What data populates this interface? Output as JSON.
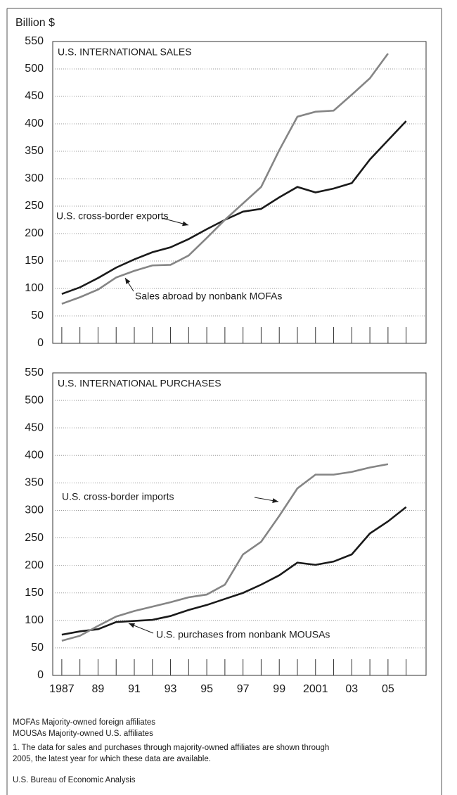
{
  "chart_data": [
    {
      "type": "line",
      "title": "U.S. INTERNATIONAL SALES",
      "ylabel": "Billion $",
      "x": [
        1987,
        1988,
        1989,
        1990,
        1991,
        1992,
        1993,
        1994,
        1995,
        1996,
        1997,
        1998,
        1999,
        2000,
        2001,
        2002,
        2003,
        2004,
        2005,
        2006
      ],
      "series": [
        {
          "name": "U.S. cross-border exports",
          "color": "#1a1a1a",
          "values": [
            90,
            102,
            119,
            138,
            153,
            166,
            175,
            190,
            208,
            225,
            240,
            245,
            266,
            285,
            275,
            282,
            292,
            335,
            370,
            405
          ]
        },
        {
          "name": "Sales abroad by nonbank MOFAs",
          "color": "#858585",
          "values": [
            72,
            84,
            98,
            120,
            132,
            142,
            143,
            160,
            192,
            225,
            255,
            285,
            352,
            413,
            422,
            424,
            453,
            483,
            528,
            null
          ]
        }
      ],
      "xlim": [
        1986.5,
        2007.1
      ],
      "ylim": [
        0,
        550
      ],
      "yticks": [
        0,
        50,
        100,
        150,
        200,
        250,
        300,
        350,
        400,
        450,
        500,
        550
      ],
      "grid": true
    },
    {
      "type": "line",
      "title": "U.S. INTERNATIONAL PURCHASES",
      "x": [
        1987,
        1988,
        1989,
        1990,
        1991,
        1992,
        1993,
        1994,
        1995,
        1996,
        1997,
        1998,
        1999,
        2000,
        2001,
        2002,
        2003,
        2004,
        2005,
        2006
      ],
      "series": [
        {
          "name": "U.S. cross-border imports",
          "color": "#1a1a1a",
          "values": [
            74,
            80,
            84,
            97,
            99,
            101,
            108,
            119,
            128,
            139,
            150,
            165,
            182,
            205,
            201,
            207,
            220,
            258,
            280,
            306
          ]
        },
        {
          "name": "U.S. purchases from nonbank MOUSAs",
          "color": "#858585",
          "values": [
            63,
            72,
            90,
            107,
            117,
            125,
            133,
            142,
            147,
            165,
            220,
            243,
            290,
            340,
            365,
            365,
            370,
            378,
            384,
            null
          ]
        }
      ],
      "xlim": [
        1986.5,
        2007.1
      ],
      "ylim": [
        0,
        550
      ],
      "yticks": [
        0,
        50,
        100,
        150,
        200,
        250,
        300,
        350,
        400,
        450,
        500,
        550
      ],
      "xticks": [
        1987,
        {
          "value": 1989,
          "label": "89"
        },
        {
          "value": 1991,
          "label": "91"
        },
        {
          "value": 1993,
          "label": "93"
        },
        {
          "value": 1995,
          "label": "95"
        },
        {
          "value": 1997,
          "label": "97"
        },
        {
          "value": 1999,
          "label": "99"
        },
        2001,
        {
          "value": 2003,
          "label": "03"
        },
        {
          "value": 2005,
          "label": "05"
        }
      ],
      "grid": true
    }
  ],
  "notes": [
    "MOFAs  Majority-owned foreign affiliates",
    "MOUSAs  Majority-owned U.S. affiliates",
    "1. The data for sales and purchases through majority-owned affiliates are shown through",
    "2005, the latest year for which these data are available."
  ],
  "source": "U.S. Bureau of Economic Analysis"
}
